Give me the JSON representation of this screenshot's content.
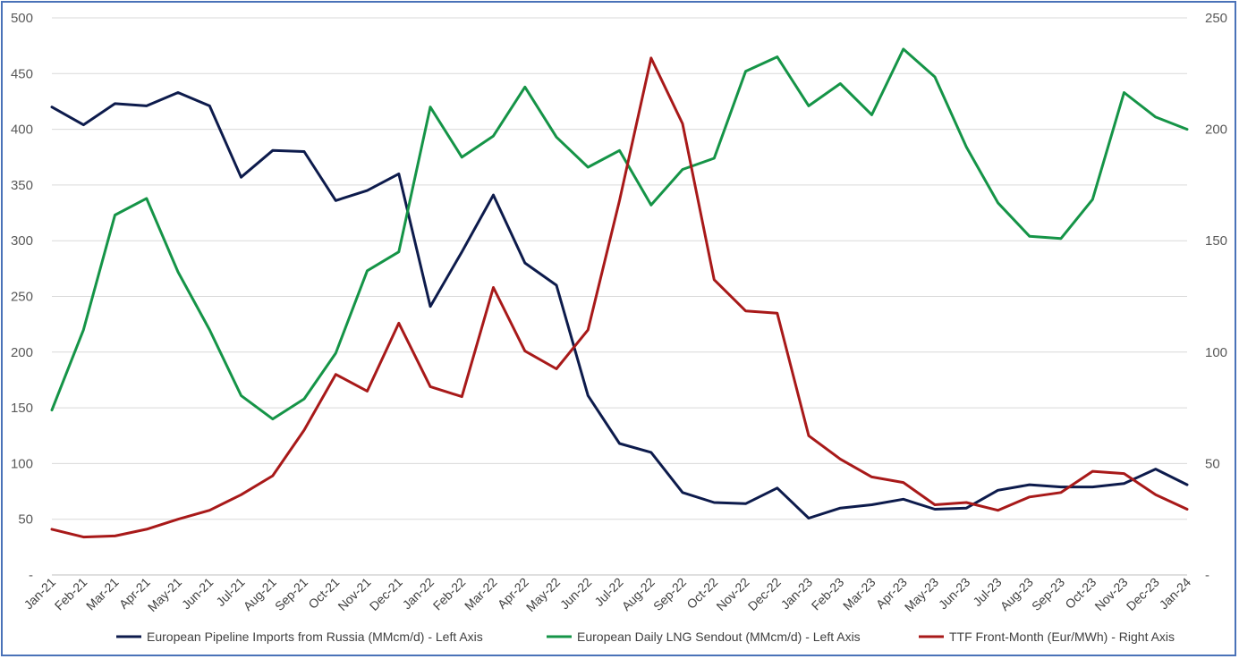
{
  "chart_data": {
    "type": "line",
    "title": "",
    "xlabel": "",
    "ylabel": "",
    "x": [
      "Jan-21",
      "Feb-21",
      "Mar-21",
      "Apr-21",
      "May-21",
      "Jun-21",
      "Jul-21",
      "Aug-21",
      "Sep-21",
      "Oct-21",
      "Nov-21",
      "Dec-21",
      "Jan-22",
      "Feb-22",
      "Mar-22",
      "Apr-22",
      "May-22",
      "Jun-22",
      "Jul-22",
      "Aug-22",
      "Sep-22",
      "Oct-22",
      "Nov-22",
      "Dec-22",
      "Jan-23",
      "Feb-23",
      "Mar-23",
      "Apr-23",
      "May-23",
      "Jun-23",
      "Jul-23",
      "Aug-23",
      "Sep-23",
      "Oct-23",
      "Nov-23",
      "Dec-23",
      "Jan-24"
    ],
    "ylim_left": [
      0,
      500
    ],
    "ylim_right": [
      0,
      250
    ],
    "left_ticks": [
      "-",
      "50",
      "100",
      "150",
      "200",
      "250",
      "300",
      "350",
      "400",
      "450",
      "500"
    ],
    "right_ticks": [
      "-",
      "50",
      "100",
      "150",
      "200",
      "250"
    ],
    "grid": true,
    "legend_position": "bottom",
    "series": [
      {
        "name": "European Pipeline Imports from Russia (MMcm/d) - Left Axis",
        "axis": "left",
        "color": "#0d1b4c",
        "values": [
          420,
          404,
          423,
          421,
          433,
          421,
          357,
          381,
          380,
          336,
          345,
          360,
          241,
          290,
          341,
          280,
          260,
          161,
          118,
          110,
          74,
          65,
          64,
          78,
          51,
          60,
          63,
          68,
          59,
          60,
          76,
          81,
          79,
          79,
          82,
          95,
          81
        ]
      },
      {
        "name": "European Daily LNG Sendout (MMcm/d) - Left Axis",
        "axis": "left",
        "color": "#159447",
        "values": [
          148,
          220,
          323,
          338,
          272,
          220,
          161,
          140,
          158,
          199,
          273,
          290,
          420,
          375,
          394,
          438,
          393,
          366,
          381,
          332,
          364,
          374,
          452,
          465,
          421,
          441,
          413,
          472,
          447,
          384,
          334,
          304,
          302,
          337,
          433,
          411,
          400
        ]
      },
      {
        "name": "TTF Front-Month (Eur/MWh) - Right Axis",
        "axis": "right",
        "color": "#a81919",
        "values": [
          20.5,
          17,
          17.5,
          20.5,
          25,
          29,
          36,
          44.5,
          65,
          90,
          82.5,
          113,
          84.5,
          80,
          129,
          100.5,
          92.5,
          110,
          168,
          232,
          202.5,
          132.5,
          118.5,
          117.5,
          62.5,
          52,
          44,
          41.5,
          31.5,
          32.5,
          29,
          35,
          37,
          46.5,
          45.5,
          36,
          29.5
        ]
      }
    ]
  }
}
